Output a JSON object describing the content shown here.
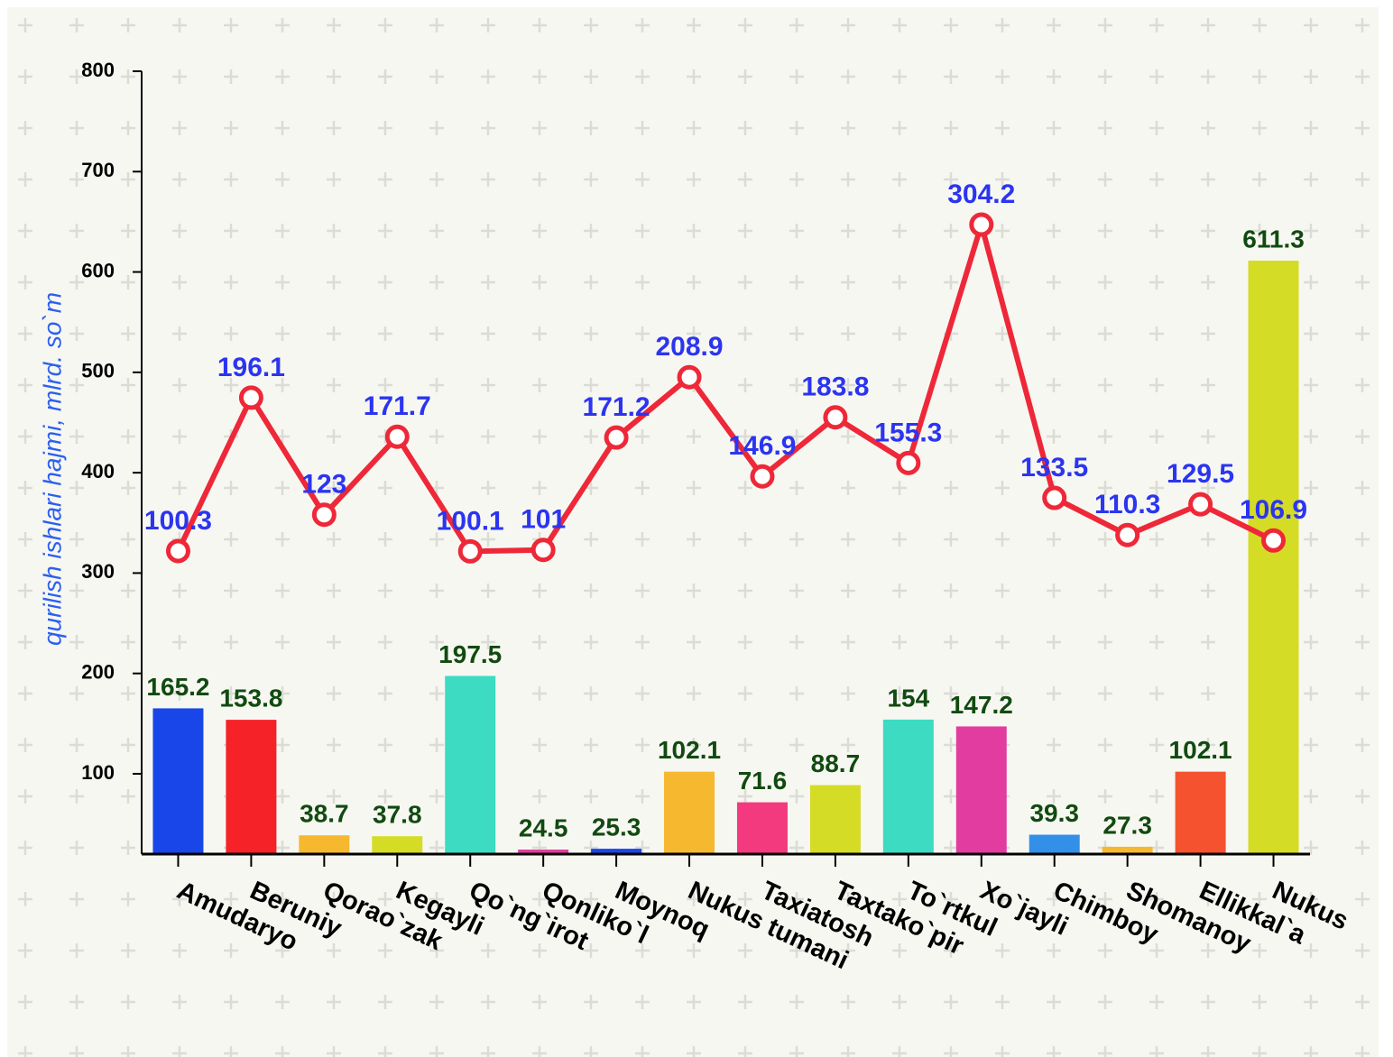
{
  "chart_data": {
    "type": "bar",
    "y_label": "qurilish ishlari hajmi, mlrd. so`m",
    "categories": [
      "Amudaryo",
      "Beruniy",
      "Qorao`zak",
      "Kegayli",
      "Qo`ng`irot",
      "Qonliko`l",
      "Moynoq",
      "Nukus tumani",
      "Taxiatosh",
      "Taxtako`pir",
      "To`rtkul",
      "Xo`jayli",
      "Chimboy",
      "Shomanoy",
      "Ellikkal`a",
      "Nukus"
    ],
    "series": [
      {
        "type": "bar",
        "colors": [
          "#1846e8",
          "#f52228",
          "#f5b82e",
          "#d5dc25",
          "#3cdbc2",
          "#e33ca0",
          "#1846e8",
          "#f5b82e",
          "#f33a7e",
          "#d5dc25",
          "#3cdbc2",
          "#e33ca0",
          "#3290e8",
          "#f5b82e",
          "#f55230",
          "#d5dc25"
        ],
        "values": [
          165.2,
          153.8,
          38.7,
          37.8,
          197.5,
          24.5,
          25.3,
          102.1,
          71.6,
          88.7,
          154,
          147.2,
          39.3,
          27.3,
          102.1,
          611.3
        ]
      },
      {
        "type": "line",
        "axis": "y2",
        "color": "#ee2838",
        "values": [
          100.3,
          196.1,
          123,
          171.7,
          100.1,
          101,
          171.2,
          208.9,
          146.9,
          183.8,
          155.3,
          304.2,
          133.5,
          110.3,
          129.5,
          106.9
        ]
      }
    ],
    "ylim": [
      20,
      800
    ],
    "yticks": [
      100,
      200,
      300,
      400,
      500,
      600,
      700,
      800
    ],
    "y2lim": [
      -89,
      400
    ]
  }
}
